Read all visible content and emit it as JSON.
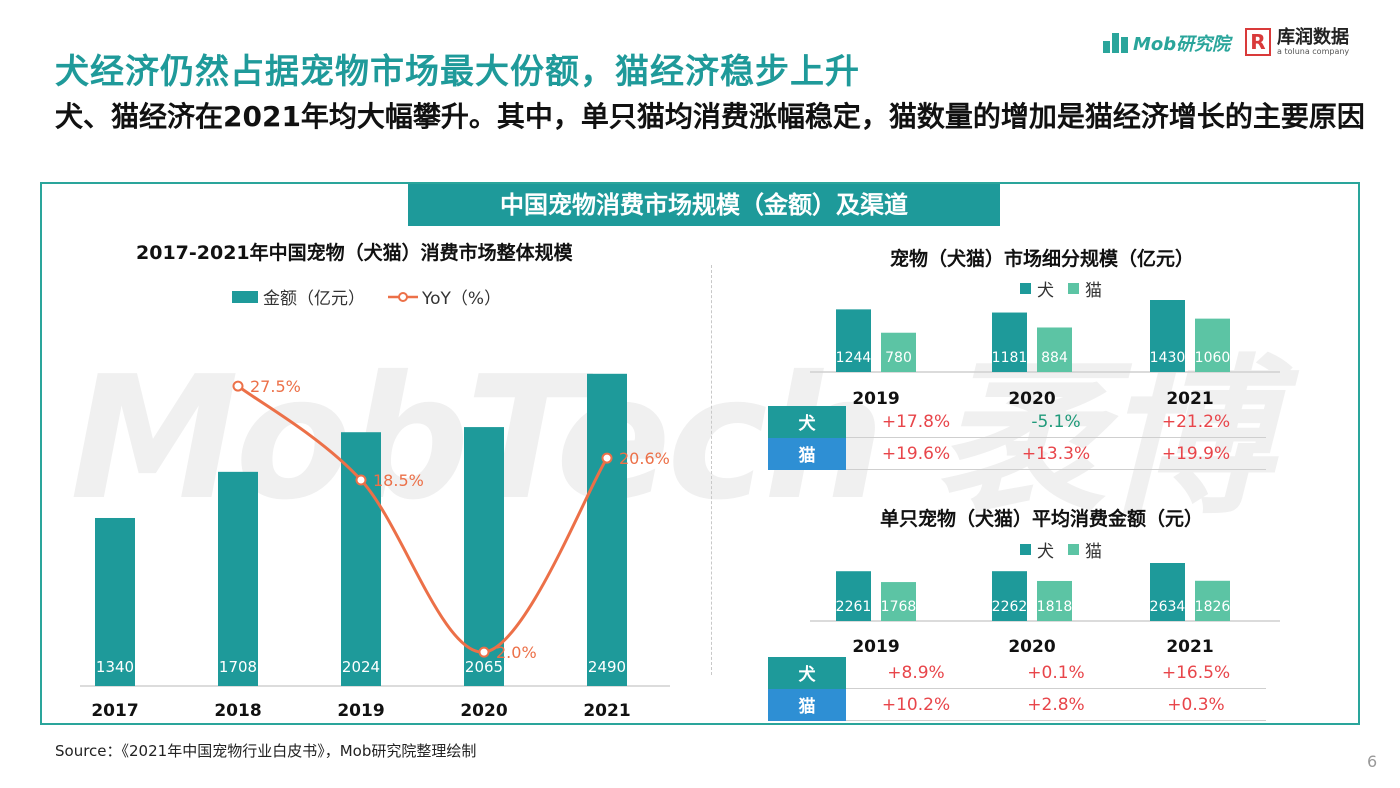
{
  "header": {
    "title": "犬经济仍然占据宠物市场最大份额，猫经济稳步上升",
    "subtitle": "犬、猫经济在2021年均大幅攀升。其中，单只猫均消费涨幅稳定，猫数量的增加是猫经济增长的主要原因"
  },
  "logos": {
    "mob_text": "Mob研究院",
    "kr_mark": "R",
    "kr_name": "库润数据",
    "kr_sub": "a toluna company"
  },
  "section_banner": "中国宠物消费市场规模（金额）及渠道",
  "watermark": "MobTech 袤博",
  "footer": {
    "source": "Source：《2021年中国宠物行业白皮书》，Mob研究院整理绘制",
    "page_number": "6"
  },
  "colors": {
    "teal_title": "#1f9a9a",
    "bar": "#1e9a9a",
    "line": "#ec7048",
    "dog": "#1e9a9a",
    "cat": "#5cc4a4",
    "dog_label_bg": "#1e9a9a",
    "cat_label_bg": "#2e8fd4",
    "positive": "#e8454a",
    "negative": "#1f9a7a"
  },
  "chart_data": [
    {
      "type": "bar",
      "title": "2017-2021年中国宠物（犬猫）消费市场整体规模",
      "categories": [
        "2017",
        "2018",
        "2019",
        "2020",
        "2021"
      ],
      "series": [
        {
          "name": "金额（亿元）",
          "kind": "bar",
          "values": [
            1340,
            1708,
            2024,
            2065,
            2490
          ]
        },
        {
          "name": "YoY（%）",
          "kind": "line",
          "values": [
            null,
            27.5,
            18.5,
            2.0,
            20.6
          ],
          "labels": [
            "",
            "27.5%",
            "18.5%",
            "2.0%",
            "20.6%"
          ]
        }
      ],
      "ylim": [
        0,
        2600
      ],
      "y2lim": [
        0,
        30
      ],
      "legend": "top"
    },
    {
      "type": "bar",
      "title": "宠物（犬猫）市场细分规模（亿元）",
      "categories": [
        "2019",
        "2020",
        "2021"
      ],
      "series": [
        {
          "name": "犬",
          "values": [
            1244,
            1181,
            1430
          ]
        },
        {
          "name": "猫",
          "values": [
            780,
            884,
            1060
          ]
        }
      ],
      "ylim": [
        0,
        1430
      ],
      "legend": "top",
      "yoy_table": {
        "rows": [
          {
            "label": "犬",
            "values": [
              "+17.8%",
              "-5.1%",
              "+21.2%"
            ]
          },
          {
            "label": "猫",
            "values": [
              "+19.6%",
              "+13.3%",
              "+19.9%"
            ]
          }
        ]
      }
    },
    {
      "type": "bar",
      "title": "单只宠物（犬猫）平均消费金额（元）",
      "categories": [
        "2019",
        "2020",
        "2021"
      ],
      "series": [
        {
          "name": "犬",
          "values": [
            2261,
            2262,
            2634
          ]
        },
        {
          "name": "猫",
          "values": [
            1768,
            1818,
            1826
          ]
        }
      ],
      "ylim": [
        0,
        2634
      ],
      "legend": "top",
      "yoy_table": {
        "rows": [
          {
            "label": "犬",
            "values": [
              "+8.9%",
              "+0.1%",
              "+16.5%"
            ]
          },
          {
            "label": "猫",
            "values": [
              "+10.2%",
              "+2.8%",
              "+0.3%"
            ]
          }
        ]
      }
    }
  ]
}
